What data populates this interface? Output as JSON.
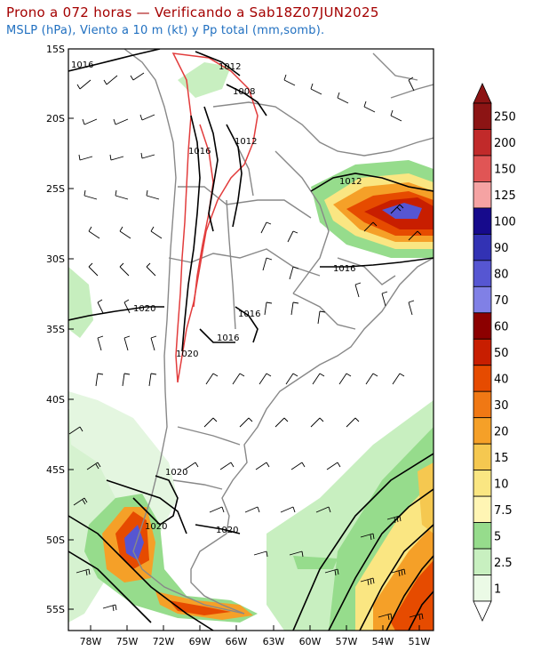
{
  "header": {
    "title": "Prono a 072 horas — Verificando a Sab18Z07JUN2025",
    "subtitle": "MSLP (hPa), Viento a 10 m (kt) y Pp total (mm,somb)."
  },
  "map": {
    "lat_labels": [
      "15S",
      "20S",
      "25S",
      "30S",
      "35S",
      "40S",
      "45S",
      "50S",
      "55S"
    ],
    "lon_labels": [
      "78W",
      "75W",
      "72W",
      "69W",
      "66W",
      "63W",
      "60W",
      "57W",
      "54W",
      "51W"
    ],
    "isobar_labels": [
      {
        "text": "1016"
      },
      {
        "text": "1012"
      },
      {
        "text": "1008"
      },
      {
        "text": "1016"
      },
      {
        "text": "1012"
      },
      {
        "text": "1012"
      },
      {
        "text": "1016"
      },
      {
        "text": "1020"
      },
      {
        "text": "1016"
      },
      {
        "text": "1016"
      },
      {
        "text": "1020"
      },
      {
        "text": "1020"
      },
      {
        "text": "1020"
      },
      {
        "text": "1020"
      }
    ],
    "colors": {
      "ocean_wash": "#eef8ee",
      "isobar": "#000000",
      "border": "#888888",
      "topo": "#e23c3c",
      "barb": "#000000"
    }
  },
  "colorbar": {
    "labels": [
      "250",
      "200",
      "150",
      "125",
      "100",
      "90",
      "80",
      "70",
      "60",
      "50",
      "40",
      "30",
      "20",
      "15",
      "10",
      "7.5",
      "5",
      "2.5",
      "1"
    ],
    "colors": [
      "#8c1414",
      "#c12a2a",
      "#e05555",
      "#f5a3a3",
      "#160a8c",
      "#3232b4",
      "#5656d2",
      "#8080e6",
      "#8c0000",
      "#c81e00",
      "#e64b00",
      "#f07814",
      "#f5a028",
      "#f5c850",
      "#fae682",
      "#fff5b4",
      "#96dc8c",
      "#c8f0c0",
      "#ebfae6"
    ]
  }
}
